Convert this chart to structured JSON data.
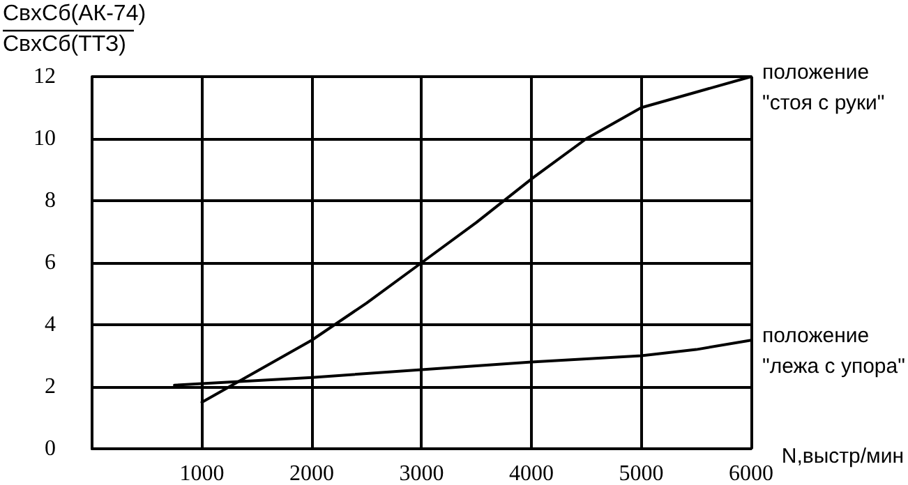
{
  "chart_data": {
    "type": "line",
    "ylabel": "СвхСб(АК-74)\nСвхСб(ТТЗ)",
    "xlabel": "N,выстр/мин",
    "xlim": [
      0,
      6000
    ],
    "xticks": [
      1000,
      2000,
      3000,
      4000,
      5000,
      6000
    ],
    "ylim": [
      0,
      12
    ],
    "yticks": [
      0,
      2,
      4,
      6,
      8,
      10,
      12
    ],
    "grid": true,
    "marker": "none",
    "line_style": "solid",
    "series": [
      {
        "name": "положение\n\"стоя с руки\"",
        "color": "#000000",
        "x": [
          1000,
          1500,
          2000,
          2500,
          3000,
          3500,
          4000,
          4500,
          5000,
          5500,
          6000
        ],
        "values": [
          1.5,
          2.5,
          3.5,
          4.7,
          6.0,
          7.3,
          8.7,
          10.0,
          11.0,
          11.5,
          12.0
        ]
      },
      {
        "name": "положение\n\"лежа с упора\"",
        "color": "#000000",
        "x": [
          750,
          1000,
          2000,
          3000,
          4000,
          5000,
          5500,
          6000
        ],
        "values": [
          2.05,
          2.1,
          2.3,
          2.55,
          2.8,
          3.0,
          3.2,
          3.5
        ]
      }
    ]
  }
}
